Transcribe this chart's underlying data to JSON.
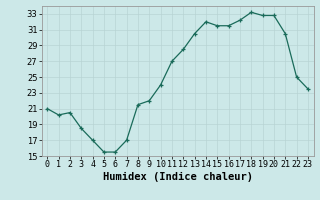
{
  "x": [
    0,
    1,
    2,
    3,
    4,
    5,
    6,
    7,
    8,
    9,
    10,
    11,
    12,
    13,
    14,
    15,
    16,
    17,
    18,
    19,
    20,
    21,
    22,
    23
  ],
  "y": [
    21,
    20.2,
    20.5,
    18.5,
    17,
    15.5,
    15.5,
    17,
    21.5,
    22,
    24,
    27,
    28.5,
    30.5,
    32,
    31.5,
    31.5,
    32.2,
    33.2,
    32.8,
    32.8,
    30.5,
    25,
    23.5
  ],
  "xlabel": "Humidex (Indice chaleur)",
  "ylim": [
    15,
    34
  ],
  "xlim": [
    -0.5,
    23.5
  ],
  "yticks": [
    15,
    17,
    19,
    21,
    23,
    25,
    27,
    29,
    31,
    33
  ],
  "line_color": "#1a6b5a",
  "bg_color": "#cce8e8",
  "grid_color": "#b8d4d4",
  "tick_fontsize": 6,
  "xlabel_fontsize": 7.5
}
